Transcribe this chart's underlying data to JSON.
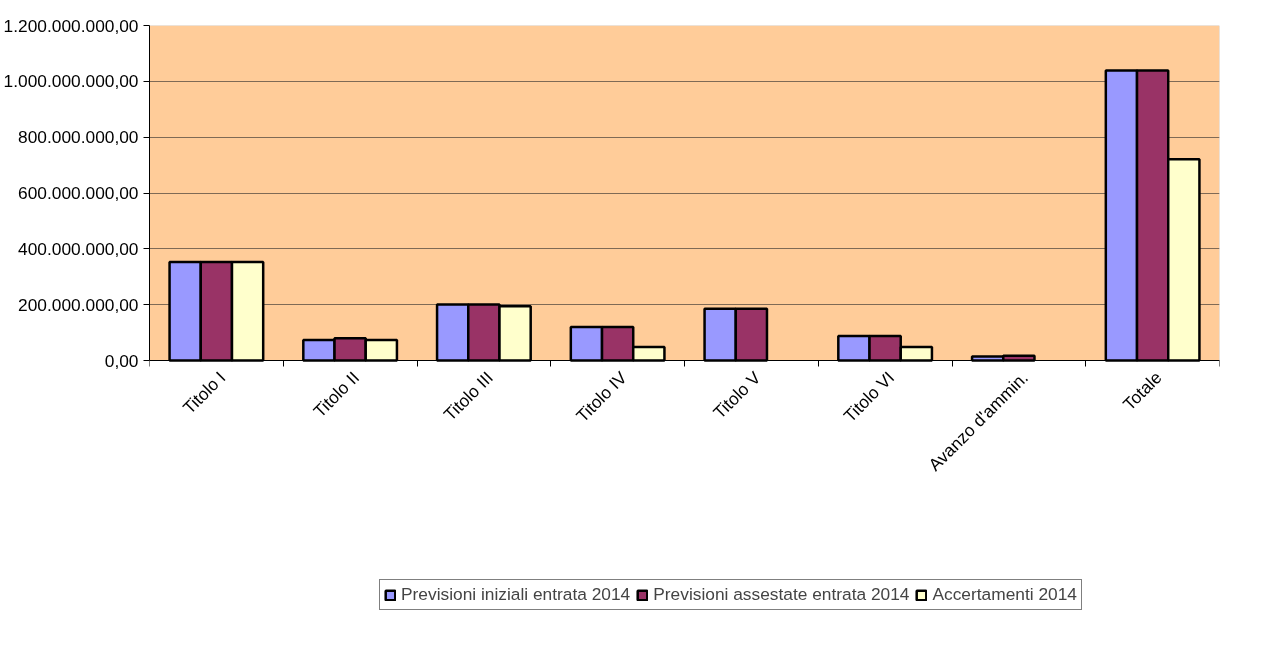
{
  "chart_data": {
    "type": "bar",
    "categories": [
      "Titolo I",
      "Titolo II",
      "Titolo III",
      "Titolo IV",
      "Titolo V",
      "Titolo VI",
      "Avanzo d'ammin.",
      "Totale"
    ],
    "series": [
      {
        "name": "Previsioni iniziali entrata 2014",
        "color": "#9999ff",
        "values": [
          353000000,
          73000000,
          201000000,
          120000000,
          185000000,
          88000000,
          14000000,
          1039000000
        ]
      },
      {
        "name": "Previsioni assestate entrata 2014",
        "color": "#993366",
        "values": [
          353000000,
          80000000,
          201000000,
          120000000,
          185000000,
          88000000,
          17000000,
          1039000000
        ]
      },
      {
        "name": "Accertamenti 2014",
        "color": "#ffffcc",
        "values": [
          353000000,
          73000000,
          194000000,
          48000000,
          null,
          48000000,
          null,
          721000000
        ]
      }
    ],
    "ylim": [
      0,
      1200000000
    ],
    "yticks": [
      {
        "value": 0,
        "label": "0,00"
      },
      {
        "value": 200000000,
        "label": "200.000.000,00"
      },
      {
        "value": 400000000,
        "label": "400.000.000,00"
      },
      {
        "value": 600000000,
        "label": "600.000.000,00"
      },
      {
        "value": 800000000,
        "label": "800.000.000,00"
      },
      {
        "value": 1000000000,
        "label": "1.000.000.000,00"
      },
      {
        "value": 1200000000,
        "label": "1.200.000.000,00"
      }
    ],
    "grid": "y",
    "legend": "bottom"
  }
}
